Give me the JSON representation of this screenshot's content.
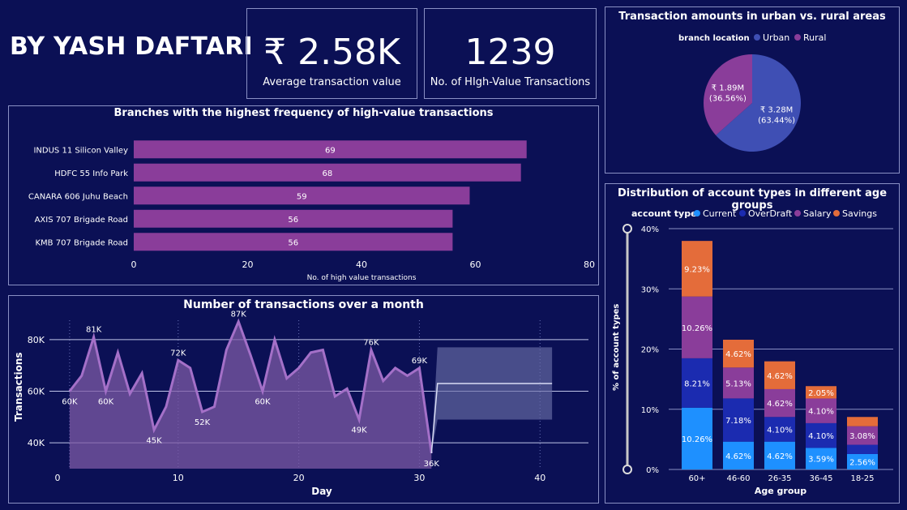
{
  "header": {
    "title": "BY YASH DAFTARI"
  },
  "kpis": [
    {
      "value": "₹ 2.58K",
      "label": "Average transaction value"
    },
    {
      "value": "1239",
      "label": "No. of HIgh-Value Transactions"
    }
  ],
  "colors": {
    "background": "#0b1055",
    "bar_purple": "#8a3d9a",
    "urban": "#3f4fb4",
    "rural": "#8a3d9a",
    "current": "#1e90ff",
    "overdraft": "#1b2bb0",
    "salary": "#8a3d9a",
    "savings": "#e46c3a",
    "area": "#7d5aa6"
  },
  "chart_data": [
    {
      "type": "bar",
      "orientation": "horizontal",
      "title": "Branches with the highest frequency of high-value transactions",
      "xlabel": "No. of high value transactions",
      "ylabel": "branch_name",
      "categories": [
        "INDUS 11 Silicon Valley",
        "HDFC 55 Info Park",
        "CANARA 606 Juhu Beach",
        "AXIS 707 Brigade Road",
        "KMB 707 Brigade Road"
      ],
      "values": [
        69,
        68,
        59,
        56,
        56
      ],
      "xlim": [
        0,
        80
      ],
      "xticks": [
        "0",
        "20",
        "40",
        "60",
        "80"
      ]
    },
    {
      "type": "area",
      "title": "Number of transactions over a month",
      "xlabel": "Day",
      "ylabel": "Transactions",
      "xlim": [
        0,
        42
      ],
      "ylim": [
        30000,
        90000
      ],
      "xticks": [
        "0",
        "10",
        "20",
        "30",
        "40"
      ],
      "yticks": [
        "40K",
        "60K",
        "80K"
      ],
      "x": [
        1,
        2,
        3,
        4,
        5,
        6,
        7,
        8,
        9,
        10,
        11,
        12,
        13,
        14,
        15,
        16,
        17,
        18,
        19,
        20,
        21,
        22,
        23,
        24,
        25,
        26,
        27,
        28,
        29,
        30,
        31
      ],
      "y": [
        60000,
        66000,
        81000,
        60000,
        75000,
        59000,
        67000,
        45000,
        54000,
        72000,
        69000,
        52000,
        54000,
        76000,
        87000,
        74000,
        60000,
        80000,
        65000,
        69000,
        75000,
        76000,
        58000,
        61000,
        49000,
        76000,
        64000,
        69000,
        66000,
        69000,
        36000
      ],
      "point_labels": [
        {
          "x": 1,
          "y": 60000,
          "label": "60K"
        },
        {
          "x": 3,
          "y": 81000,
          "label": "81K"
        },
        {
          "x": 4,
          "y": 60000,
          "label": "60K"
        },
        {
          "x": 8,
          "y": 45000,
          "label": "45K"
        },
        {
          "x": 10,
          "y": 72000,
          "label": "72K"
        },
        {
          "x": 12,
          "y": 52000,
          "label": "52K"
        },
        {
          "x": 15,
          "y": 87000,
          "label": "87K"
        },
        {
          "x": 17,
          "y": 60000,
          "label": "60K"
        },
        {
          "x": 25,
          "y": 49000,
          "label": "49K"
        },
        {
          "x": 26,
          "y": 76000,
          "label": "76K"
        },
        {
          "x": 30,
          "y": 69000,
          "label": "69K"
        },
        {
          "x": 31,
          "y": 36000,
          "label": "36K"
        }
      ],
      "forecast": {
        "x_start": 31,
        "x_end": 41,
        "value": 63000,
        "upper": 77000,
        "lower": 49000
      }
    },
    {
      "type": "pie",
      "title": "Transaction amounts in urban vs. rural areas",
      "legend_title": "branch location",
      "slices": [
        {
          "name": "Urban",
          "value": 3.28,
          "label": "₹ 3.28M",
          "pct": "(63.44%)"
        },
        {
          "name": "Rural",
          "value": 1.89,
          "label": "₹ 1.89M",
          "pct": "(36.56%)"
        }
      ]
    },
    {
      "type": "bar",
      "stacked": true,
      "title": "Distribution of account types in different age groups",
      "legend_title": "account type",
      "xlabel": "Age group",
      "ylabel": "% of account types",
      "ylim": [
        0,
        40
      ],
      "yticks": [
        "0%",
        "10%",
        "20%",
        "30%",
        "40%"
      ],
      "categories": [
        "60+",
        "46-60",
        "26-35",
        "36-45",
        "18-25"
      ],
      "series": [
        {
          "name": "Current",
          "values": [
            10.26,
            4.62,
            4.62,
            3.59,
            2.56
          ],
          "labels": [
            "10.26%",
            "4.62%",
            "4.62%",
            "3.59%",
            "2.56%"
          ]
        },
        {
          "name": "OverDraft",
          "values": [
            8.21,
            7.18,
            4.1,
            4.1,
            1.54
          ],
          "labels": [
            "8.21%",
            "7.18%",
            "4.10%",
            "4.10%",
            ""
          ]
        },
        {
          "name": "Salary",
          "values": [
            10.26,
            5.13,
            4.62,
            4.1,
            3.08
          ],
          "labels": [
            "10.26%",
            "5.13%",
            "4.62%",
            "4.10%",
            "3.08%"
          ]
        },
        {
          "name": "Savings",
          "values": [
            9.23,
            4.62,
            4.62,
            2.05,
            1.54
          ],
          "labels": [
            "9.23%",
            "4.62%",
            "4.62%",
            "2.05%",
            ""
          ]
        }
      ]
    }
  ]
}
